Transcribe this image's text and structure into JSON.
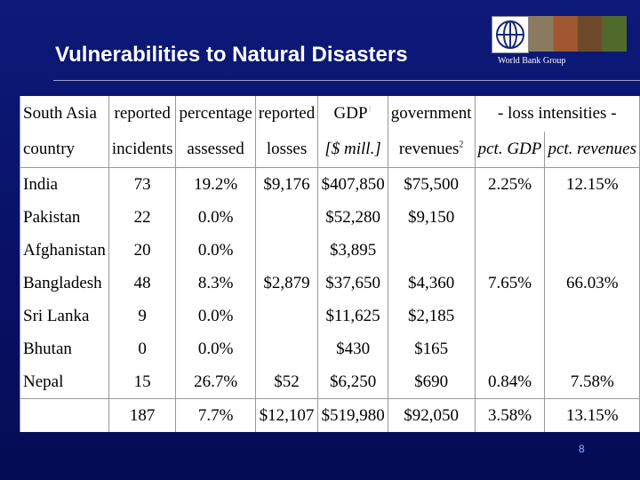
{
  "header": {
    "title": "Vulnerabilities to Natural Disasters",
    "logo_text": "World Bank Group"
  },
  "table": {
    "header_top": [
      "South Asia",
      "reported",
      "percentage",
      "reported",
      "GDP",
      "government",
      "- loss intensities -"
    ],
    "header_bottom": [
      "country",
      "incidents",
      "assessed",
      "losses",
      "[$ mill.]",
      "revenues",
      "pct. GDP",
      "pct. revenues"
    ],
    "gdp_note": "1",
    "revenues_note": "2",
    "rows": [
      [
        "India",
        "73",
        "19.2%",
        "$9,176",
        "$407,850",
        "$75,500",
        "2.25%",
        "12.15%"
      ],
      [
        "Pakistan",
        "22",
        "0.0%",
        null,
        "$52,280",
        "$9,150",
        null,
        null
      ],
      [
        "Afghanistan",
        "20",
        "0.0%",
        null,
        "$3,895",
        null,
        null,
        null
      ],
      [
        "Bangladesh",
        "48",
        "8.3%",
        "$2,879",
        "$37,650",
        "$4,360",
        "7.65%",
        "66.03%"
      ],
      [
        "Sri Lanka",
        "9",
        "0.0%",
        null,
        "$11,625",
        "$2,185",
        null,
        null
      ],
      [
        "Bhutan",
        "0",
        "0.0%",
        null,
        "$430",
        "$165",
        null,
        null
      ],
      [
        "Nepal",
        "15",
        "26.7%",
        "$52",
        "$6,250",
        "$690",
        "0.84%",
        "7.58%"
      ]
    ],
    "total": [
      null,
      "187",
      "7.7%",
      "$12,107",
      "$519,980",
      "$92,050",
      "3.58%",
      "13.15%"
    ]
  },
  "footer": {
    "page_number": "8"
  }
}
